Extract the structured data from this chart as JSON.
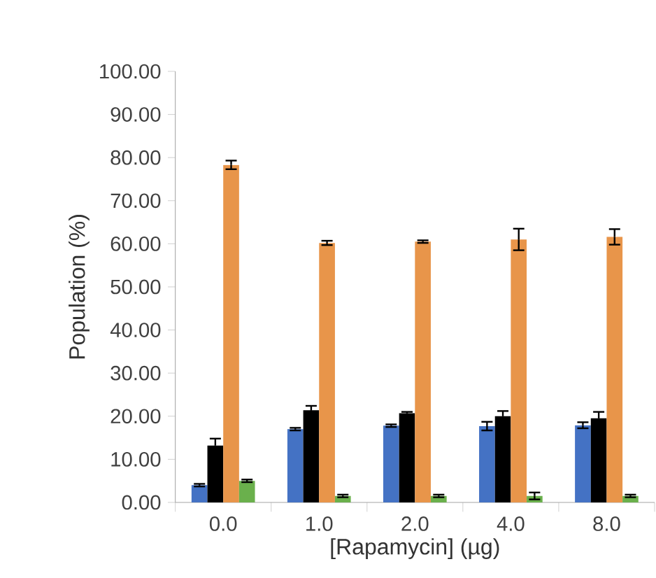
{
  "chart_data": {
    "type": "bar",
    "xlabel": "[Rapamycin] (µg)",
    "ylabel": "Population (%)",
    "categories": [
      "0.0",
      "1.0",
      "2.0",
      "4.0",
      "8.0"
    ],
    "series": [
      {
        "color": "#4472c4",
        "values": [
          4.0,
          17.0,
          17.8,
          17.7,
          17.9
        ],
        "errors": [
          0.3,
          0.3,
          0.3,
          1.0,
          0.7
        ]
      },
      {
        "color": "#000000",
        "values": [
          13.2,
          21.4,
          20.7,
          20.0,
          19.5
        ],
        "errors": [
          1.6,
          1.0,
          0.3,
          1.2,
          1.5
        ]
      },
      {
        "color": "#e8954a",
        "values": [
          78.3,
          60.2,
          60.5,
          61.0,
          61.6
        ],
        "errors": [
          1.0,
          0.5,
          0.3,
          2.5,
          1.8
        ]
      },
      {
        "color": "#6ab04c",
        "values": [
          5.0,
          1.5,
          1.5,
          1.5,
          1.5
        ],
        "errors": [
          0.3,
          0.3,
          0.3,
          0.8,
          0.3
        ]
      }
    ],
    "ylim": [
      0,
      100
    ],
    "yticks": [
      {
        "value": 0,
        "label": "0.00"
      },
      {
        "value": 10,
        "label": "10.00"
      },
      {
        "value": 20,
        "label": "20.00"
      },
      {
        "value": 30,
        "label": "30.00"
      },
      {
        "value": 40,
        "label": "40.00"
      },
      {
        "value": 50,
        "label": "50.00"
      },
      {
        "value": 60,
        "label": "60.00"
      },
      {
        "value": 70,
        "label": "70.00"
      },
      {
        "value": 80,
        "label": "80.00"
      },
      {
        "value": 90,
        "label": "90.00"
      },
      {
        "value": 100,
        "label": "100.00"
      }
    ],
    "grid": false
  }
}
